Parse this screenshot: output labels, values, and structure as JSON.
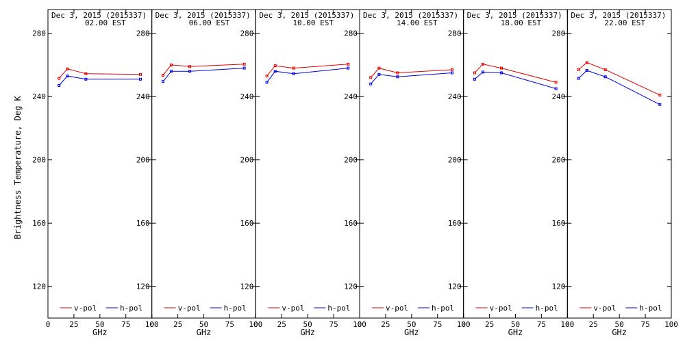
{
  "colors": {
    "v_pol": "#e00000",
    "h_pol": "#0000e0",
    "axis": "#000000",
    "background": "#ffffff"
  },
  "chart_data": {
    "type": "line",
    "ylabel": "Brightness Temperature, Deg K",
    "xlabel": "GHz",
    "xlim": [
      0,
      100
    ],
    "ylim": [
      100,
      295
    ],
    "xticks": [
      0,
      25,
      50,
      75,
      100
    ],
    "yticks": [
      120,
      160,
      200,
      240,
      280
    ],
    "grid": false,
    "legend_placement": "bottom",
    "series_names": [
      "v-pol",
      "h-pol"
    ],
    "x": [
      10.7,
      18.7,
      36.5,
      89.0
    ],
    "panels": [
      {
        "date": "Dec  3, 2015 (2015337)",
        "time": "02.00 EST",
        "series": [
          {
            "name": "v-pol",
            "values": [
              251.5,
              257.5,
              254.5,
              254.0
            ]
          },
          {
            "name": "h-pol",
            "values": [
              247.0,
              253.0,
              251.0,
              251.0
            ]
          }
        ]
      },
      {
        "date": "Dec  3, 2015 (2015337)",
        "time": "06.00 EST",
        "series": [
          {
            "name": "v-pol",
            "values": [
              253.5,
              260.0,
              259.0,
              260.5
            ]
          },
          {
            "name": "h-pol",
            "values": [
              249.5,
              256.0,
              256.0,
              258.0
            ]
          }
        ]
      },
      {
        "date": "Dec  3, 2015 (2015337)",
        "time": "10.00 EST",
        "series": [
          {
            "name": "v-pol",
            "values": [
              253.0,
              259.5,
              258.0,
              260.5
            ]
          },
          {
            "name": "h-pol",
            "values": [
              249.0,
              256.0,
              254.5,
              258.0
            ]
          }
        ]
      },
      {
        "date": "Dec  3, 2015 (2015337)",
        "time": "14.00 EST",
        "series": [
          {
            "name": "v-pol",
            "values": [
              252.0,
              258.0,
              255.0,
              257.0
            ]
          },
          {
            "name": "h-pol",
            "values": [
              248.0,
              254.0,
              252.5,
              255.0
            ]
          }
        ]
      },
      {
        "date": "Dec  3, 2015 (2015337)",
        "time": "18.00 EST",
        "series": [
          {
            "name": "v-pol",
            "values": [
              255.0,
              260.5,
              258.0,
              249.0
            ]
          },
          {
            "name": "h-pol",
            "values": [
              251.0,
              255.5,
              255.0,
              245.0
            ]
          }
        ]
      },
      {
        "date": "Dec  3, 2015 (2015337)",
        "time": "22.00 EST",
        "series": [
          {
            "name": "v-pol",
            "values": [
              257.0,
              261.5,
              257.0,
              241.0
            ]
          },
          {
            "name": "h-pol",
            "values": [
              251.5,
              256.5,
              252.5,
              235.0
            ]
          }
        ]
      }
    ]
  }
}
